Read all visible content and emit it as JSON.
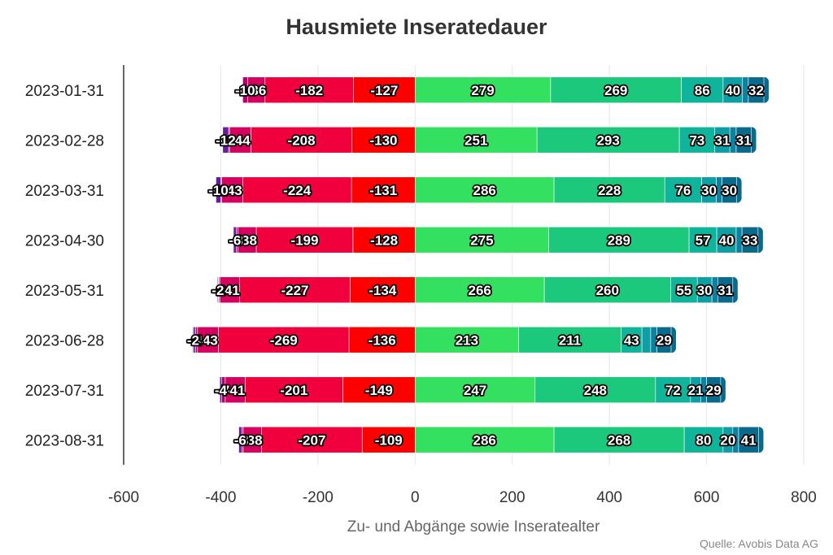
{
  "chart_data": {
    "type": "bar",
    "orientation": "horizontal",
    "stacked": "diverging",
    "title": "Hausmiete Inseratedauer",
    "xlabel": "Zu- und Abgänge sowie Inseratealter",
    "ylabel": "",
    "source": "Quelle: Avobis Data AG",
    "xlim": [
      -600,
      800
    ],
    "xticks": [
      -600,
      -400,
      -200,
      0,
      200,
      400,
      600,
      800
    ],
    "grid": true,
    "categories": [
      "2023-01-31",
      "2023-02-28",
      "2023-03-31",
      "2023-04-30",
      "2023-05-31",
      "2023-06-28",
      "2023-07-31",
      "2023-08-31"
    ],
    "negative_series": [
      {
        "color": "#FF0000",
        "values": [
          -127,
          -130,
          -131,
          -128,
          -134,
          -136,
          -149,
          -109
        ]
      },
      {
        "color": "#F0003C",
        "values": [
          -182,
          -208,
          -224,
          -199,
          -227,
          -269,
          -201,
          -207
        ]
      },
      {
        "color": "#D6005E",
        "values": [
          -36,
          -44,
          -43,
          -38,
          -41,
          -43,
          -41,
          -38
        ]
      },
      {
        "color": "#B0006E",
        "values": [
          -10,
          -2,
          -2,
          -3,
          -2,
          -4,
          -7,
          -3
        ]
      },
      {
        "color": "#6A1B9A",
        "values": [
          -1,
          -12,
          -10,
          -6,
          -1,
          -4,
          -4,
          -6
        ]
      },
      {
        "color": "#3F51B5",
        "values": [
          0,
          0,
          0,
          0,
          -2,
          -2,
          0,
          0
        ]
      }
    ],
    "positive_series": [
      {
        "color": "#33E060",
        "values": [
          279,
          251,
          286,
          275,
          266,
          213,
          247,
          286
        ]
      },
      {
        "color": "#1CC87C",
        "values": [
          269,
          293,
          228,
          289,
          260,
          211,
          248,
          268
        ]
      },
      {
        "color": "#10B49A",
        "values": [
          86,
          73,
          76,
          57,
          55,
          43,
          72,
          80
        ]
      },
      {
        "color": "#0E9EA4",
        "values": [
          40,
          31,
          30,
          40,
          30,
          18,
          21,
          20
        ]
      },
      {
        "color": "#0C82A0",
        "values": [
          12,
          13,
          12,
          12,
          12,
          13,
          12,
          12
        ]
      },
      {
        "color": "#0A6A8C",
        "values": [
          32,
          31,
          30,
          33,
          31,
          29,
          29,
          41
        ]
      }
    ]
  }
}
